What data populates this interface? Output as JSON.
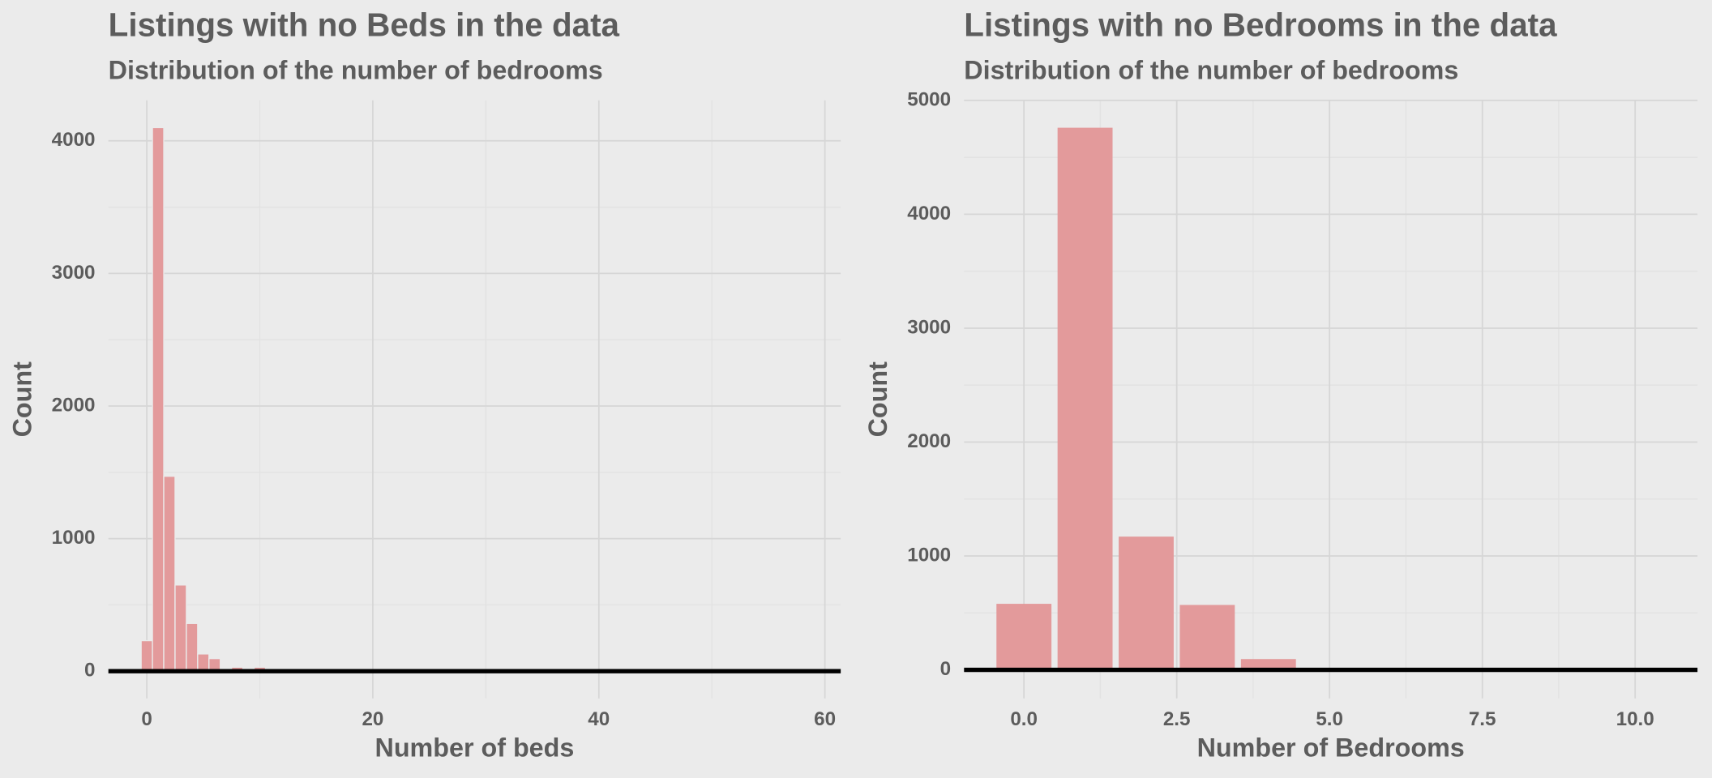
{
  "chart_data": [
    {
      "type": "histogram",
      "title": "Listings with no Beds in the data",
      "subtitle": "Distribution of the number of bedrooms",
      "x_label": "Number of beds",
      "y_label": "Count",
      "bins": [
        -0.5,
        0.5,
        1.5,
        2.5,
        3.5,
        4.5,
        5.5,
        6.5,
        7.5,
        8.5,
        9.5,
        10.5,
        11.5,
        12.5,
        13.5,
        14.5,
        15.5,
        16.5,
        17.5,
        18.5,
        19.5,
        20.5,
        21.5,
        22.5,
        23.5,
        24.5,
        25.5,
        26.5,
        27.5,
        28.5,
        29.5,
        30.5,
        31.5,
        32.5,
        33.5,
        34.5,
        35.5,
        36.5,
        37.5,
        38.5,
        39.5,
        40.5,
        41.5,
        42.5,
        43.5,
        44.5,
        45.5,
        46.5,
        47.5,
        48.5,
        49.5,
        50.5,
        51.5,
        52.5,
        53.5,
        54.5,
        55.5,
        56.5,
        57.5,
        58.5,
        59.5,
        60.5
      ],
      "values": [
        230,
        4100,
        1470,
        650,
        360,
        130,
        95,
        10,
        30,
        5,
        30,
        5,
        5,
        0,
        10,
        5,
        15,
        5,
        3,
        2,
        2,
        1,
        1,
        0,
        1,
        0,
        1,
        0,
        0,
        0,
        1,
        0,
        0,
        0,
        0,
        0,
        0,
        0,
        0,
        0,
        1,
        0,
        0,
        0,
        0,
        0,
        0,
        0,
        0,
        0,
        0,
        0,
        0,
        0,
        0,
        0,
        0,
        0,
        0,
        0,
        1
      ],
      "color": "#e39a9b",
      "xlim": [
        -3.4,
        61.4
      ],
      "ylim": [
        -205,
        4305
      ],
      "xticks": [
        0,
        20,
        40,
        60
      ],
      "yticks": [
        0,
        1000,
        2000,
        3000,
        4000
      ],
      "grid": true
    },
    {
      "type": "bar",
      "title": "Listings with no Bedrooms in the data",
      "subtitle": "Distribution of the number of bedrooms",
      "x_label": "Number of Bedrooms",
      "y_label": "Count",
      "x": [
        0,
        1,
        2,
        3,
        4,
        5,
        6,
        7,
        8,
        9,
        10
      ],
      "values": [
        580,
        4760,
        1170,
        570,
        95,
        15,
        5,
        3,
        2,
        1,
        1
      ],
      "bar_width": 0.9,
      "color": "#e39a9b",
      "xlim": [
        -0.98,
        11.02
      ],
      "ylim": [
        -250,
        5000
      ],
      "xticks": [
        {
          "value": 0,
          "label": "0.0"
        },
        {
          "value": 2.5,
          "label": "2.5"
        },
        {
          "value": 5,
          "label": "5.0"
        },
        {
          "value": 7.5,
          "label": "7.5"
        },
        {
          "value": 10,
          "label": "10.0"
        }
      ],
      "yticks": [
        0,
        1000,
        2000,
        3000,
        4000,
        5000
      ],
      "grid": true
    }
  ]
}
